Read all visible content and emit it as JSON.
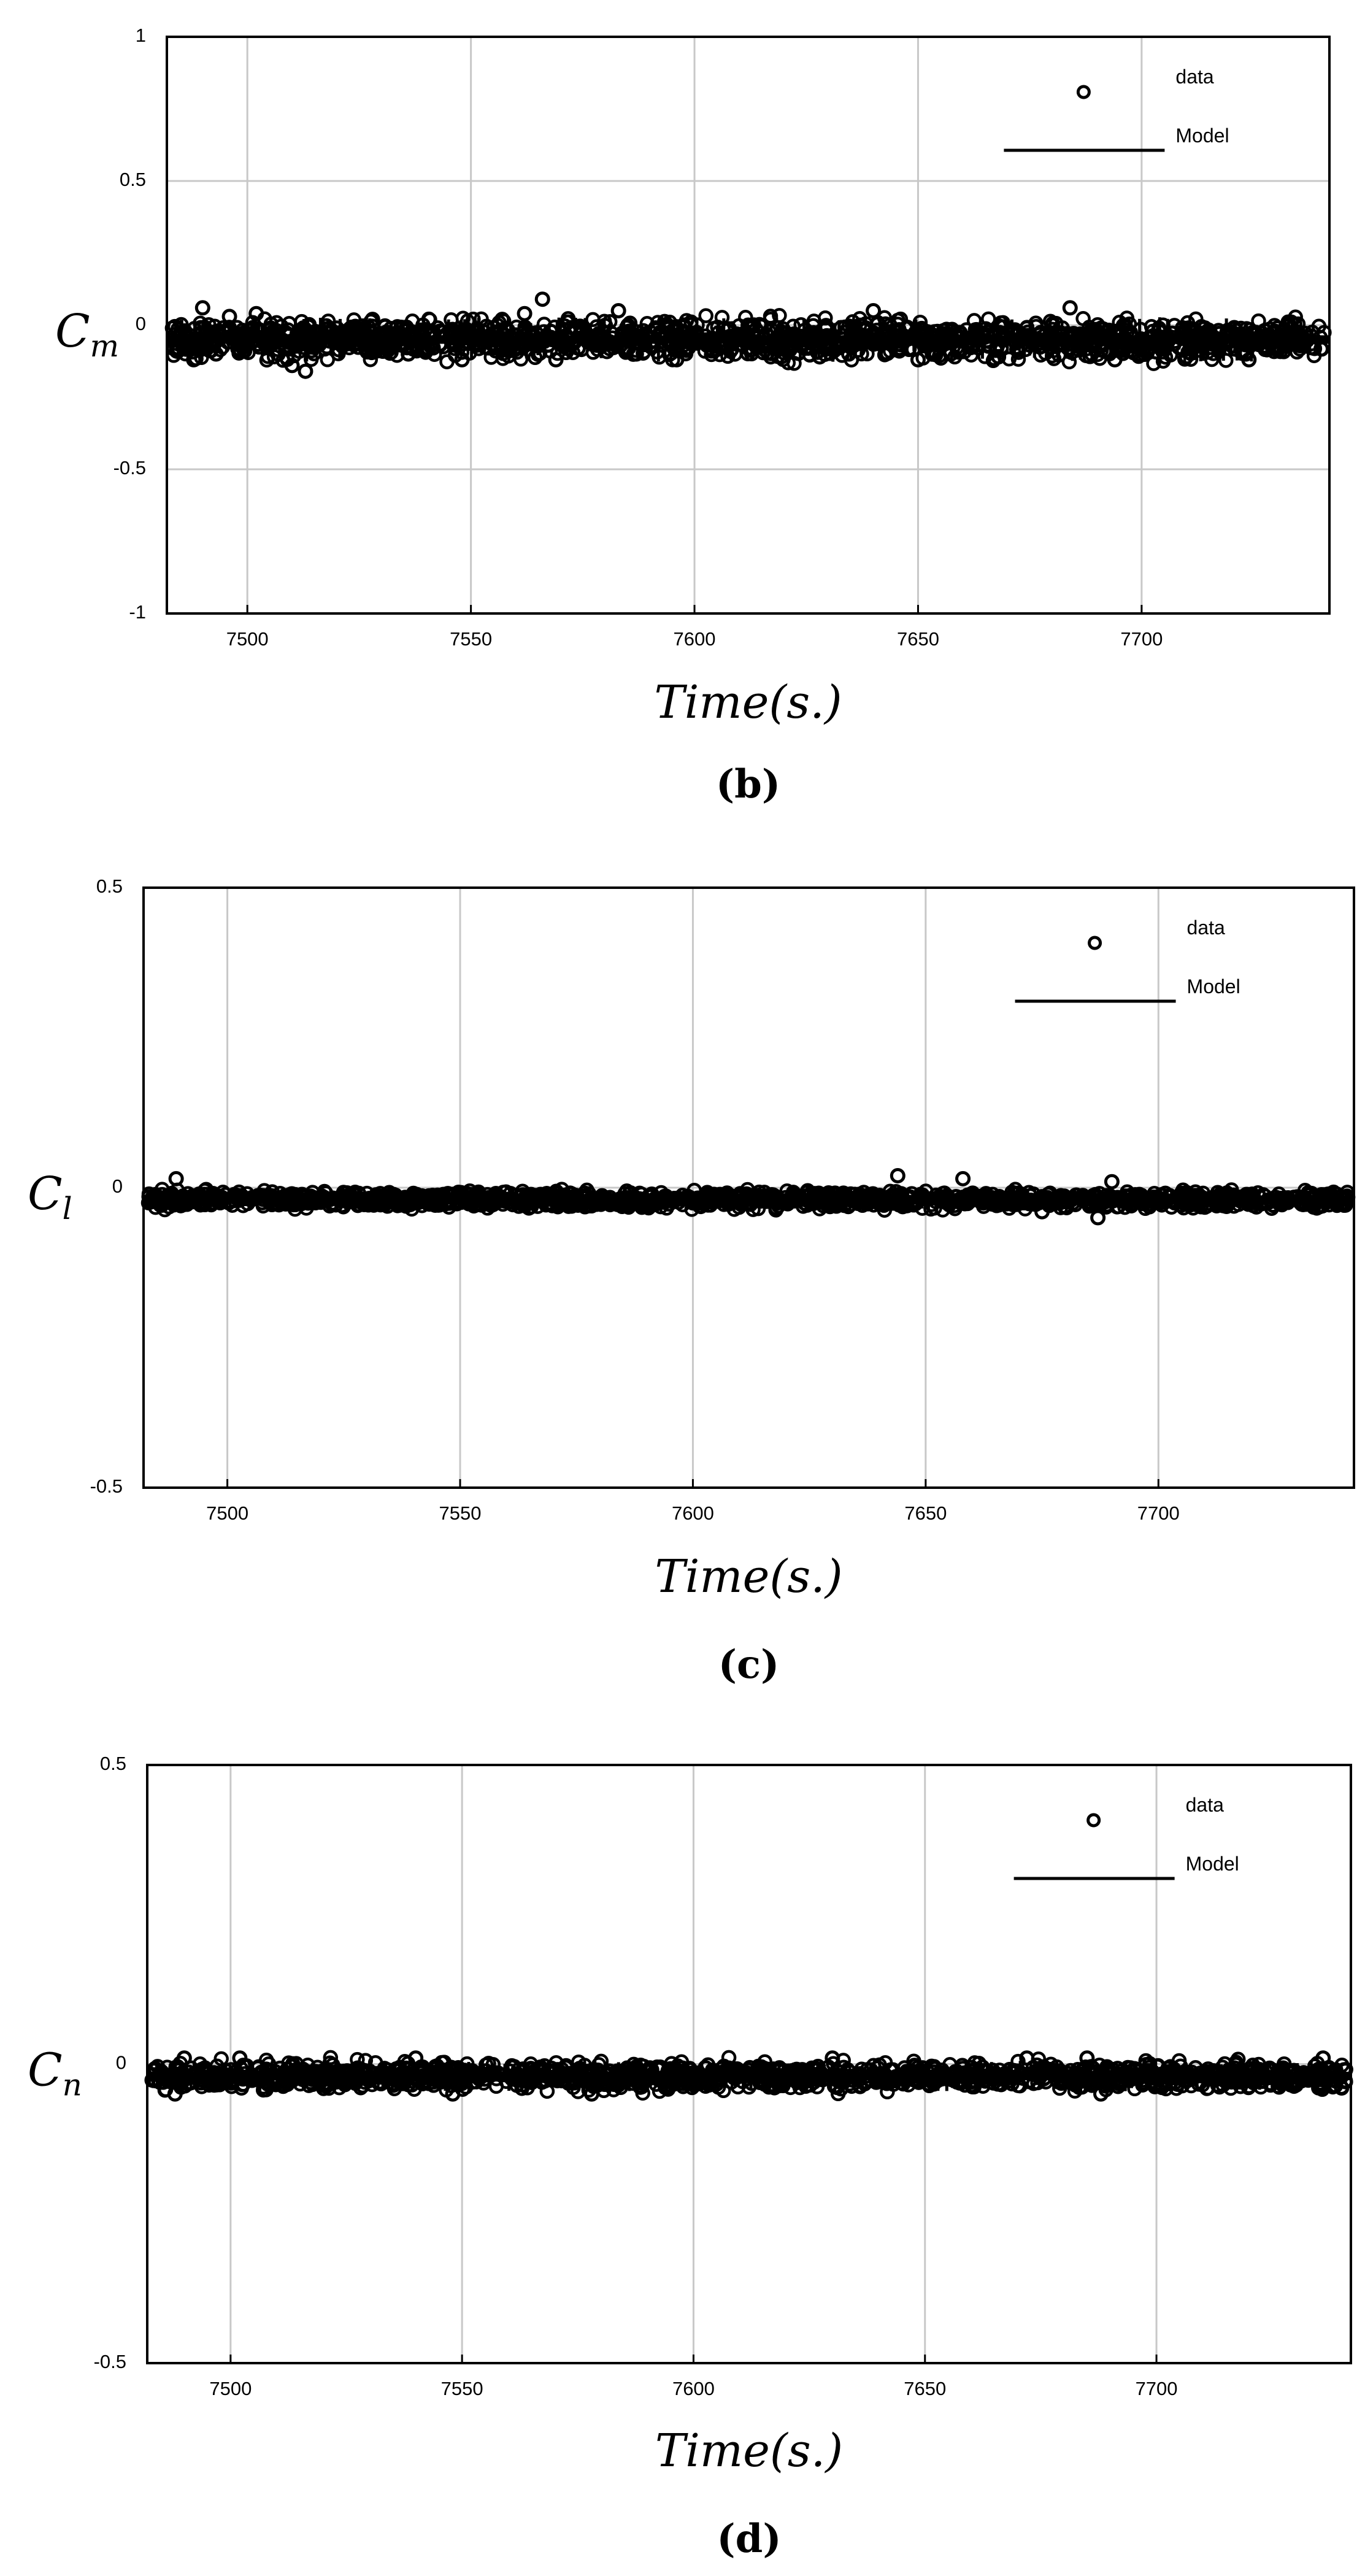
{
  "chart_data": [
    {
      "type": "scatter",
      "panel_label": "(b)",
      "ylabel": {
        "main": "C",
        "sub": "m"
      },
      "xlabel": "Time(s.)",
      "xlim": [
        7482,
        7742
      ],
      "ylim": [
        -1,
        1
      ],
      "xticks": [
        7500,
        7550,
        7600,
        7650,
        7700
      ],
      "yticks": [
        1,
        0.5,
        0,
        -0.5,
        -1
      ],
      "ytick_labels": [
        "1",
        "0.5",
        "0",
        "-0.5",
        "-1"
      ],
      "grid": true,
      "legend_position": "top-right",
      "series": [
        {
          "name": "data",
          "marker": "circle"
        },
        {
          "name": "Model",
          "style": "line"
        }
      ],
      "baseline": -0.05,
      "spread": 0.12,
      "points": [
        [
          7486,
          -0.02
        ],
        [
          7488,
          -0.12
        ],
        [
          7490,
          0.06
        ],
        [
          7493,
          -0.1
        ],
        [
          7496,
          0.03
        ],
        [
          7502,
          0.04
        ],
        [
          7510,
          -0.14
        ],
        [
          7513,
          -0.16
        ],
        [
          7520,
          -0.01
        ],
        [
          7528,
          0.02
        ],
        [
          7536,
          -0.1
        ],
        [
          7548,
          -0.12
        ],
        [
          7557,
          0.02
        ],
        [
          7562,
          0.04
        ],
        [
          7566,
          0.09
        ],
        [
          7569,
          -0.12
        ],
        [
          7574,
          -0.08
        ],
        [
          7583,
          0.05
        ],
        [
          7587,
          -0.1
        ],
        [
          7596,
          -0.12
        ],
        [
          7612,
          0.0
        ],
        [
          7628,
          -0.11
        ],
        [
          7640,
          0.05
        ],
        [
          7650,
          -0.12
        ],
        [
          7668,
          -0.11
        ],
        [
          7684,
          0.06
        ],
        [
          7694,
          -0.12
        ],
        [
          7710,
          -0.11
        ],
        [
          7724,
          -0.12
        ],
        [
          7736,
          -0.07
        ]
      ]
    },
    {
      "type": "scatter",
      "panel_label": "(c)",
      "ylabel": {
        "main": "C",
        "sub": "l"
      },
      "xlabel": "Time(s.)",
      "xlim": [
        7482,
        7742
      ],
      "ylim": [
        -0.5,
        0.5
      ],
      "xticks": [
        7500,
        7550,
        7600,
        7650,
        7700
      ],
      "yticks": [
        0.5,
        0,
        -0.5
      ],
      "ytick_labels": [
        "0.5",
        "0",
        "-0.5"
      ],
      "grid": true,
      "legend_position": "top-right",
      "series": [
        {
          "name": "data",
          "marker": "circle"
        },
        {
          "name": "Model",
          "style": "line"
        }
      ],
      "baseline": -0.02,
      "spread": 0.025,
      "points": [
        [
          7489,
          0.015
        ],
        [
          7490,
          -0.03
        ],
        [
          7644,
          0.02
        ],
        [
          7646,
          -0.03
        ],
        [
          7658,
          0.015
        ],
        [
          7675,
          -0.04
        ],
        [
          7687,
          -0.05
        ],
        [
          7690,
          0.01
        ],
        [
          7737,
          -0.01
        ]
      ]
    },
    {
      "type": "scatter",
      "panel_label": "(d)",
      "ylabel": {
        "main": "C",
        "sub": "n"
      },
      "xlabel": "Time(s.)",
      "xlim": [
        7482,
        7742
      ],
      "ylim": [
        -0.5,
        0.5
      ],
      "xticks": [
        7500,
        7550,
        7600,
        7650,
        7700
      ],
      "yticks": [
        0.5,
        0,
        -0.5
      ],
      "ytick_labels": [
        "0.5",
        "0",
        "-0.5"
      ],
      "grid": true,
      "legend_position": "top-right",
      "series": [
        {
          "name": "data",
          "marker": "circle"
        },
        {
          "name": "Model",
          "style": "line"
        }
      ],
      "baseline": -0.02,
      "spread": 0.04,
      "points": [
        [
          7488,
          -0.05
        ],
        [
          7490,
          0.01
        ],
        [
          7502,
          0.01
        ],
        [
          7540,
          0.01
        ],
        [
          7548,
          -0.05
        ],
        [
          7578,
          -0.05
        ],
        [
          7630,
          0.01
        ],
        [
          7660,
          -0.03
        ],
        [
          7672,
          0.01
        ],
        [
          7685,
          0.01
        ],
        [
          7688,
          -0.05
        ],
        [
          7736,
          0.01
        ],
        [
          7740,
          -0.04
        ]
      ]
    }
  ]
}
